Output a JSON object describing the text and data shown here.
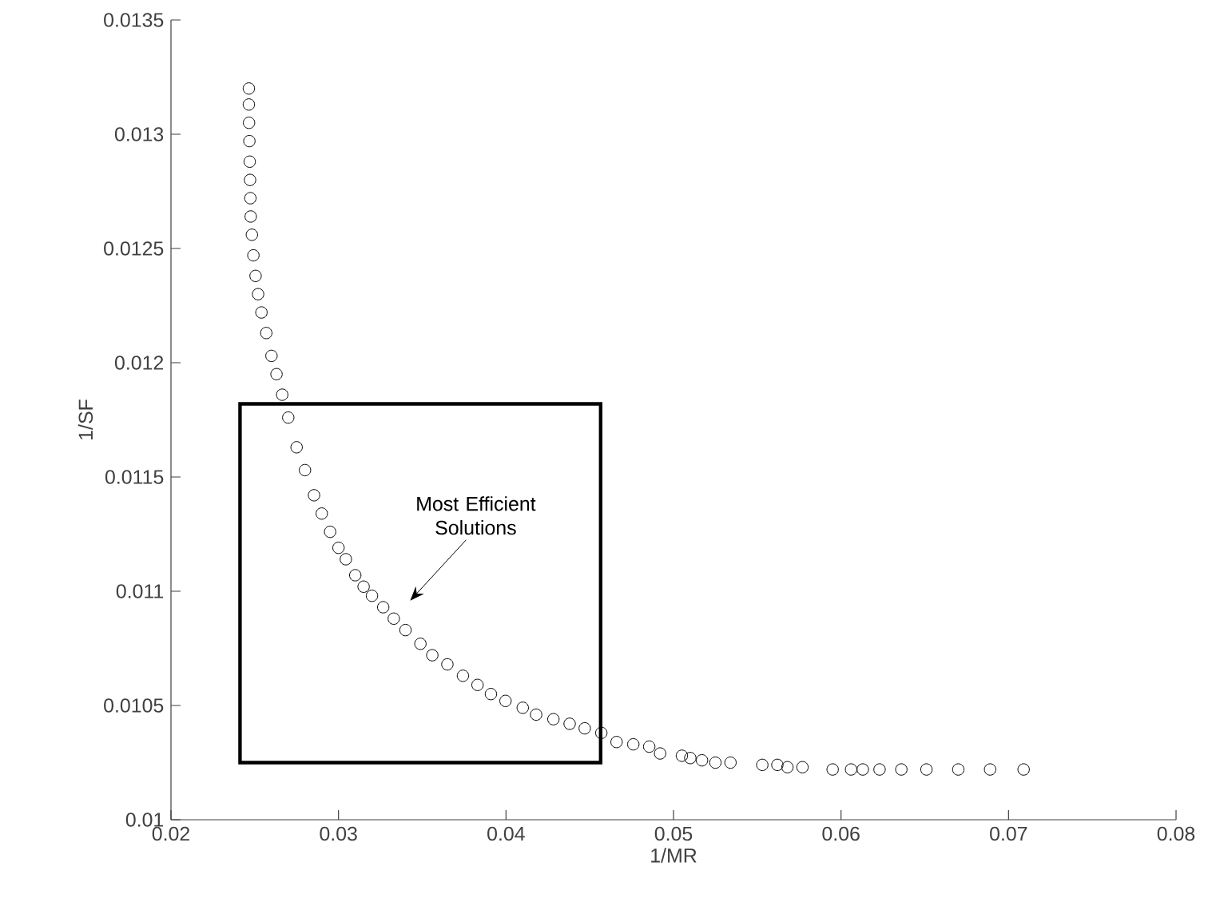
{
  "chart_data": {
    "type": "scatter",
    "xlabel": "1/MR",
    "ylabel": "1/SF",
    "xlim": [
      0.02,
      0.08
    ],
    "ylim": [
      0.01,
      0.0135
    ],
    "xticks": [
      0.02,
      0.03,
      0.04,
      0.05,
      0.06,
      0.07,
      0.08
    ],
    "yticks": [
      0.01,
      0.0105,
      0.011,
      0.0115,
      0.012,
      0.0125,
      0.013,
      0.0135
    ],
    "grid": false,
    "marker": "circle",
    "annotations": [
      "Most Efficient Solutions"
    ],
    "series": [
      {
        "color": "#000000",
        "x": [
          0.02465,
          0.02465,
          0.02466,
          0.02468,
          0.0247,
          0.02472,
          0.02474,
          0.02476,
          0.02483,
          0.02492,
          0.02505,
          0.0252,
          0.0254,
          0.02569,
          0.026,
          0.0263,
          0.02664,
          0.027,
          0.0275,
          0.028,
          0.02854,
          0.029,
          0.0295,
          0.03,
          0.03044,
          0.031,
          0.0315,
          0.032,
          0.03267,
          0.0333,
          0.034,
          0.03489,
          0.0356,
          0.0365,
          0.03743,
          0.0383,
          0.0391,
          0.03997,
          0.041,
          0.0418,
          0.04283,
          0.0438,
          0.0447,
          0.04569,
          0.0466,
          0.0476,
          0.04855,
          0.0492,
          0.0505,
          0.051,
          0.0517,
          0.0525,
          0.0534,
          0.0553,
          0.0562,
          0.0568,
          0.0577,
          0.0595,
          0.0606,
          0.0613,
          0.0623,
          0.0636,
          0.0651,
          0.067,
          0.0689,
          0.0709
        ],
        "values": [
          0.0132,
          0.01313,
          0.01305,
          0.01297,
          0.01288,
          0.0128,
          0.01272,
          0.01264,
          0.01256,
          0.01247,
          0.01238,
          0.0123,
          0.01222,
          0.01213,
          0.01203,
          0.01195,
          0.01186,
          0.01176,
          0.01163,
          0.01153,
          0.01142,
          0.01134,
          0.01126,
          0.01119,
          0.01114,
          0.01107,
          0.01102,
          0.01098,
          0.01093,
          0.01088,
          0.01083,
          0.01077,
          0.01072,
          0.01068,
          0.01063,
          0.01059,
          0.01055,
          0.01052,
          0.01049,
          0.01046,
          0.01044,
          0.01042,
          0.0104,
          0.01038,
          0.01034,
          0.01033,
          0.01032,
          0.01029,
          0.01028,
          0.01027,
          0.01026,
          0.01025,
          0.01025,
          0.01024,
          0.01024,
          0.01023,
          0.01023,
          0.01022,
          0.01022,
          0.01022,
          0.01022,
          0.01022,
          0.01022,
          0.01022,
          0.01022,
          0.01022
        ]
      }
    ]
  }
}
